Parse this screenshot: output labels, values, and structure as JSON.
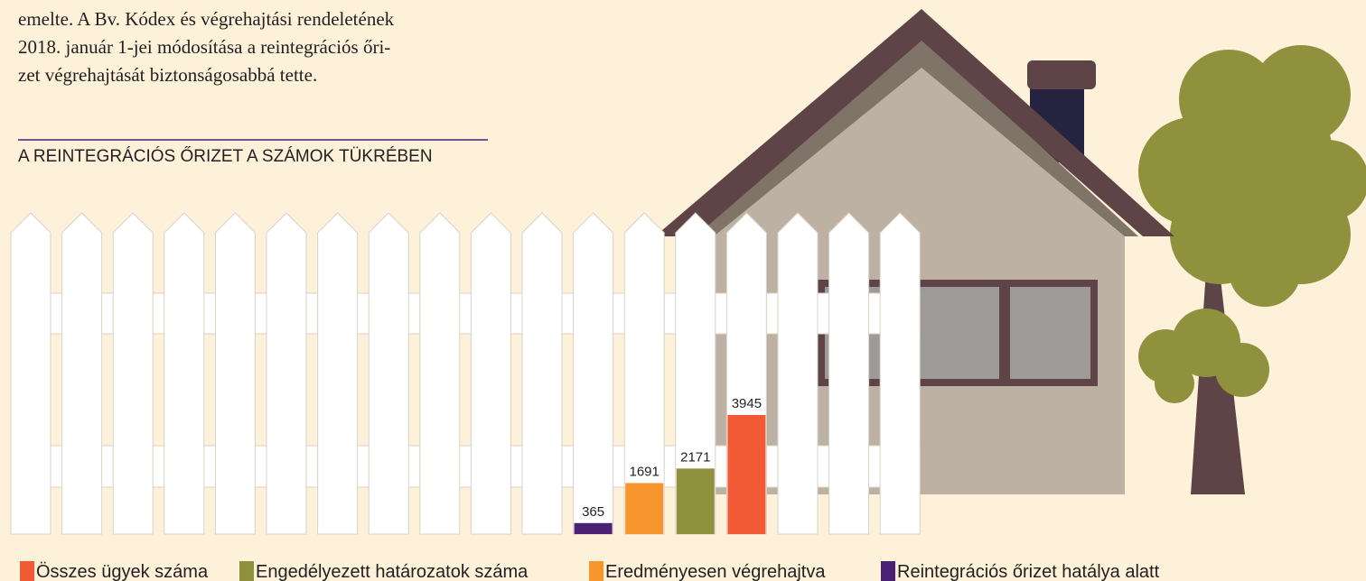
{
  "intro_lines": [
    "emelte. A Bv. Kódex és végrehajtási rendeletének",
    "2018. január 1-jei módosítása a reintegrációs őri-",
    "zet végrehajtását biztonságosabbá tette."
  ],
  "chart_data": {
    "type": "bar",
    "title": "A REINTEGRÁCIÓS ŐRIZET A SZÁMOK TÜKRÉBEN",
    "series": [
      {
        "name": "Összes ügyek száma",
        "color": "#f15a35",
        "values": [
          3945
        ]
      },
      {
        "name": "Engedélyezett határozatok száma",
        "color": "#8f913d",
        "values": [
          2171
        ]
      },
      {
        "name": "Eredményesen végrehajtva",
        "color": "#f7962c",
        "values": [
          1691
        ]
      },
      {
        "name": "Reintegrációs őrizet hatálya alatt",
        "color": "#4b2175",
        "values": [
          365
        ]
      }
    ]
  }
}
